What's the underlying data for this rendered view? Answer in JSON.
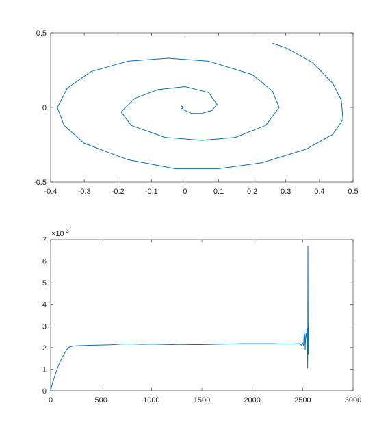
{
  "chart_data": [
    {
      "type": "line",
      "title": "",
      "xlabel": "",
      "ylabel": "",
      "xlim": [
        -0.4,
        0.5
      ],
      "ylim": [
        -0.5,
        0.5
      ],
      "xticks": [
        -0.4,
        -0.3,
        -0.2,
        -0.1,
        0,
        0.1,
        0.2,
        0.3,
        0.4,
        0.5
      ],
      "xtick_labels": [
        "-0.4",
        "-0.3",
        "-0.2",
        "-0.1",
        "0",
        "0.1",
        "0.2",
        "0.3",
        "0.4",
        "0.5"
      ],
      "yticks": [
        -0.5,
        0,
        0.5
      ],
      "ytick_labels": [
        "-0.5",
        "0",
        "0.5"
      ],
      "grid": false,
      "color": "#0072BD",
      "series": [
        {
          "values_note": "approximate spiral trace (x, y)",
          "points": [
            [
              -0.01,
              -0.01
            ],
            [
              -0.005,
              0.0
            ],
            [
              -0.01,
              0.01
            ],
            [
              -0.005,
              -0.015
            ],
            [
              0.02,
              -0.04
            ],
            [
              0.05,
              -0.04
            ],
            [
              0.08,
              -0.02
            ],
            [
              0.095,
              0.02
            ],
            [
              0.07,
              0.1
            ],
            [
              0.0,
              0.14
            ],
            [
              -0.08,
              0.12
            ],
            [
              -0.15,
              0.06
            ],
            [
              -0.19,
              -0.03
            ],
            [
              -0.16,
              -0.12
            ],
            [
              -0.06,
              -0.2
            ],
            [
              0.05,
              -0.22
            ],
            [
              0.15,
              -0.2
            ],
            [
              0.24,
              -0.12
            ],
            [
              0.28,
              0.0
            ],
            [
              0.26,
              0.11
            ],
            [
              0.2,
              0.22
            ],
            [
              0.07,
              0.31
            ],
            [
              -0.05,
              0.33
            ],
            [
              -0.17,
              0.31
            ],
            [
              -0.28,
              0.24
            ],
            [
              -0.35,
              0.13
            ],
            [
              -0.38,
              0.0
            ],
            [
              -0.36,
              -0.12
            ],
            [
              -0.3,
              -0.24
            ],
            [
              -0.17,
              -0.35
            ],
            [
              -0.03,
              -0.41
            ],
            [
              0.1,
              -0.41
            ],
            [
              0.23,
              -0.37
            ],
            [
              0.36,
              -0.28
            ],
            [
              0.44,
              -0.18
            ],
            [
              0.47,
              -0.08
            ],
            [
              0.465,
              0.05
            ],
            [
              0.44,
              0.16
            ],
            [
              0.38,
              0.3
            ],
            [
              0.3,
              0.4
            ],
            [
              0.26,
              0.43
            ]
          ]
        }
      ]
    },
    {
      "type": "line",
      "title": "",
      "xlabel": "",
      "ylabel": "",
      "exponent_label": "×10-3",
      "exponent_base": "×10",
      "exponent_power": "-3",
      "xlim": [
        0,
        3000
      ],
      "ylim": [
        0,
        7
      ],
      "xticks": [
        0,
        500,
        1000,
        1500,
        2000,
        2500,
        3000
      ],
      "xtick_labels": [
        "0",
        "500",
        "1000",
        "1500",
        "2000",
        "2500",
        "3000"
      ],
      "yticks": [
        0,
        1,
        2,
        3,
        4,
        5,
        6,
        7
      ],
      "ytick_labels": [
        "0",
        "1",
        "2",
        "3",
        "4",
        "5",
        "6",
        "7"
      ],
      "grid": false,
      "color": "#0072BD",
      "series": [
        {
          "values_note": "y in units of 1e-3",
          "x": [
            0,
            20,
            50,
            80,
            110,
            140,
            170,
            190,
            220,
            280,
            350,
            420,
            500,
            600,
            700,
            800,
            900,
            1000,
            1100,
            1200,
            1300,
            1400,
            1500,
            1600,
            1700,
            1800,
            1900,
            2000,
            2100,
            2200,
            2300,
            2400,
            2470,
            2490,
            2495,
            2500,
            2510,
            2515,
            2520,
            2525,
            2530,
            2535,
            2540,
            2545,
            2550,
            2552,
            2555,
            2558,
            2560
          ],
          "y": [
            0,
            0.4,
            0.8,
            1.2,
            1.5,
            1.75,
            1.98,
            2.03,
            2.07,
            2.09,
            2.1,
            2.11,
            2.12,
            2.13,
            2.16,
            2.17,
            2.15,
            2.16,
            2.15,
            2.14,
            2.15,
            2.14,
            2.14,
            2.15,
            2.16,
            2.17,
            2.18,
            2.18,
            2.18,
            2.18,
            2.17,
            2.17,
            2.18,
            2.1,
            2.25,
            2.2,
            2.1,
            2.7,
            2.6,
            1.9,
            2.5,
            2.65,
            2.4,
            2.9,
            1.05,
            6.7,
            1.7,
            3.0,
            2.6
          ]
        }
      ]
    }
  ]
}
